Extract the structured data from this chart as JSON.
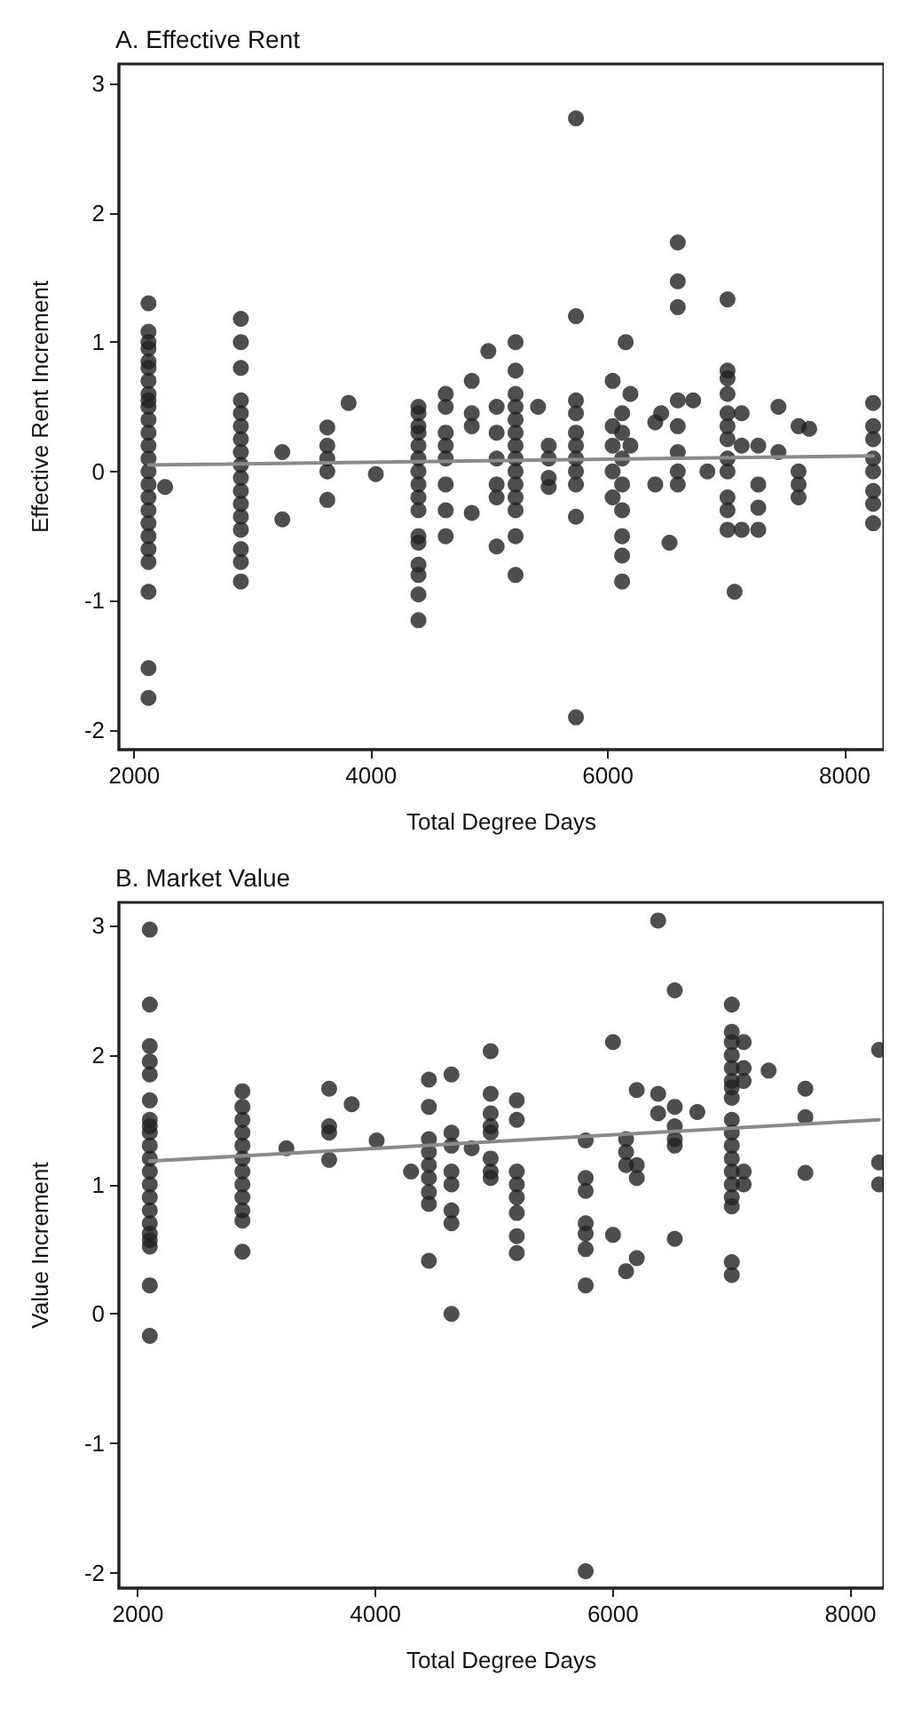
{
  "chart_data": [
    {
      "type": "scatter",
      "title": "A. Effective Rent",
      "xlabel": "Total Degree Days",
      "ylabel": "Effective Rent Increment",
      "xlim": [
        1870,
        8330
      ],
      "ylim": [
        -2.15,
        3.15
      ],
      "xticks": [
        2000,
        4000,
        6000,
        8000
      ],
      "yticks": [
        -2,
        -1,
        0,
        1,
        2,
        3
      ],
      "grid": false,
      "series": [
        {
          "color": "#222222",
          "marker": "circle",
          "x": [
            2120,
            2120,
            2120,
            2120,
            2120,
            2120,
            2120,
            2120,
            2120,
            2120,
            2120,
            2120,
            2120,
            2120,
            2120,
            2120,
            2120,
            2120,
            2120,
            2120,
            2120,
            2120,
            2120,
            2120,
            2120,
            2260,
            2900,
            2900,
            2900,
            2900,
            2900,
            2900,
            2900,
            2900,
            2900,
            2900,
            2900,
            2900,
            2900,
            2900,
            2900,
            2900,
            2900,
            3250,
            3250,
            3630,
            3630,
            3630,
            3630,
            3630,
            3810,
            4040,
            4400,
            4400,
            4400,
            4400,
            4400,
            4400,
            4400,
            4400,
            4400,
            4400,
            4400,
            4400,
            4400,
            4400,
            4400,
            4400,
            4630,
            4630,
            4630,
            4630,
            4630,
            4630,
            4630,
            4630,
            4850,
            4850,
            4850,
            4850,
            4990,
            5060,
            5060,
            5060,
            5060,
            5060,
            5060,
            5220,
            5220,
            5220,
            5220,
            5220,
            5220,
            5220,
            5220,
            5220,
            5220,
            5220,
            5220,
            5220,
            5220,
            5410,
            5500,
            5500,
            5500,
            5500,
            5730,
            5730,
            5730,
            5730,
            5730,
            5730,
            5730,
            5730,
            5730,
            5730,
            5730,
            6040,
            6040,
            6040,
            6040,
            6040,
            6120,
            6120,
            6120,
            6120,
            6120,
            6120,
            6120,
            6120,
            6150,
            6190,
            6190,
            6400,
            6400,
            6450,
            6590,
            6590,
            6590,
            6590,
            6590,
            6590,
            6590,
            6590,
            6520,
            6720,
            6840,
            7010,
            7010,
            7010,
            7010,
            7010,
            7010,
            7010,
            7010,
            7010,
            7010,
            7010,
            7010,
            7070,
            7130,
            7130,
            7130,
            7270,
            7270,
            7270,
            7270,
            7440,
            7440,
            7610,
            7610,
            7610,
            7610,
            7700,
            8240,
            8240,
            8240,
            8240,
            8240,
            8240,
            8240,
            8240
          ],
          "values": [
            1.3,
            1.08,
            1.0,
            0.95,
            0.85,
            0.8,
            0.7,
            0.6,
            0.55,
            0.5,
            0.4,
            0.3,
            0.2,
            0.1,
            0,
            -0.1,
            -0.2,
            -0.3,
            -0.4,
            -0.5,
            -0.6,
            -0.7,
            -0.93,
            -1.52,
            -1.75,
            -0.12,
            1.18,
            1.0,
            0.8,
            0.55,
            0.45,
            0.35,
            0.25,
            0.15,
            0.05,
            -0.05,
            -0.15,
            -0.25,
            -0.35,
            -0.45,
            -0.6,
            -0.7,
            -0.85,
            0.15,
            -0.37,
            0.34,
            0.2,
            0.1,
            0,
            -0.22,
            0.53,
            -0.02,
            0.5,
            0.45,
            0.35,
            0.3,
            0.2,
            0.1,
            0,
            -0.1,
            -0.2,
            -0.3,
            -0.5,
            -0.55,
            -0.72,
            -0.8,
            -0.95,
            -1.15,
            0.6,
            0.5,
            0.3,
            0.2,
            0.1,
            -0.1,
            -0.3,
            -0.5,
            0.7,
            0.45,
            0.35,
            -0.32,
            0.93,
            0.5,
            0.3,
            0.1,
            -0.1,
            -0.2,
            -0.58,
            1.0,
            0.78,
            0.6,
            0.5,
            0.4,
            0.3,
            0.2,
            0.1,
            0,
            -0.1,
            -0.2,
            -0.3,
            -0.5,
            -0.8,
            0.5,
            0.2,
            0.1,
            -0.05,
            -0.12,
            2.73,
            1.2,
            0.55,
            0.45,
            0.3,
            0.2,
            0.1,
            0,
            -0.1,
            -0.35,
            -1.9,
            0.7,
            0.35,
            0.2,
            0,
            -0.2,
            0.45,
            0.3,
            0.1,
            -0.1,
            -0.3,
            -0.5,
            -0.65,
            -0.85,
            1.0,
            0.6,
            0.2,
            0.38,
            -0.1,
            0.45,
            1.77,
            1.47,
            1.27,
            0.55,
            0.35,
            0.15,
            0,
            -0.1,
            -0.55,
            0.55,
            0,
            1.33,
            0.78,
            0.72,
            0.6,
            0.45,
            0.35,
            0.25,
            0.1,
            0,
            -0.2,
            -0.3,
            -0.45,
            -0.93,
            0.45,
            0.2,
            -0.45,
            0.2,
            -0.1,
            -0.28,
            -0.45,
            0.5,
            0.15,
            0.35,
            0,
            -0.1,
            -0.2,
            0.33,
            0.53,
            0.35,
            0.25,
            0.1,
            0,
            -0.15,
            -0.25,
            -0.4
          ]
        },
        {
          "type": "line",
          "color": "#8a8a8a",
          "marker": "none",
          "x": [
            2120,
            8240
          ],
          "values": [
            0.05,
            0.12
          ]
        }
      ]
    },
    {
      "type": "scatter",
      "title": "B. Market Value",
      "xlabel": "Total Degree Days",
      "ylabel": "Value Increment",
      "xlim": [
        1840,
        8280
      ],
      "ylim": [
        -2.12,
        3.18
      ],
      "xticks": [
        2000,
        4000,
        6000,
        8000
      ],
      "yticks": [
        -2,
        -1,
        0,
        1,
        2,
        3
      ],
      "grid": false,
      "series": [
        {
          "color": "#222222",
          "marker": "circle",
          "x": [
            2100,
            2100,
            2100,
            2100,
            2100,
            2100,
            2100,
            2100,
            2100,
            2100,
            2100,
            2100,
            2100,
            2100,
            2100,
            2100,
            2100,
            2100,
            2100,
            2100,
            2100,
            2880,
            2880,
            2880,
            2880,
            2880,
            2880,
            2880,
            2880,
            2880,
            2880,
            2880,
            2880,
            3250,
            3610,
            3610,
            3610,
            3610,
            3800,
            4010,
            4300,
            4450,
            4450,
            4450,
            4450,
            4450,
            4450,
            4450,
            4450,
            4450,
            4640,
            4640,
            4640,
            4640,
            4640,
            4640,
            4640,
            4640,
            4810,
            4970,
            4970,
            4970,
            4970,
            4970,
            4970,
            4970,
            4970,
            5190,
            5190,
            5190,
            5190,
            5190,
            5190,
            5190,
            5190,
            5770,
            5770,
            5770,
            5770,
            5770,
            5770,
            5770,
            5770,
            6000,
            6000,
            6110,
            6110,
            6110,
            6110,
            6200,
            6200,
            6200,
            6200,
            6380,
            6380,
            6380,
            6520,
            6520,
            6520,
            6520,
            6520,
            6520,
            6710,
            7000,
            7000,
            7000,
            7000,
            7000,
            7000,
            7000,
            7000,
            7000,
            7000,
            7000,
            7000,
            7000,
            7000,
            7000,
            7000,
            7000,
            7000,
            7100,
            7100,
            7100,
            7100,
            7100,
            7310,
            7620,
            7620,
            7620,
            8240,
            8240,
            8240
          ],
          "values": [
            2.97,
            2.39,
            2.07,
            1.95,
            1.85,
            1.65,
            1.5,
            1.45,
            1.4,
            1.3,
            1.2,
            1.1,
            1.0,
            0.9,
            0.8,
            0.7,
            0.62,
            0.57,
            0.52,
            0.22,
            -0.17,
            1.72,
            1.6,
            1.5,
            1.4,
            1.3,
            1.2,
            1.1,
            1.0,
            0.9,
            0.8,
            0.72,
            0.48,
            1.28,
            1.74,
            1.45,
            1.4,
            1.19,
            1.62,
            1.34,
            1.1,
            1.81,
            1.6,
            1.35,
            1.25,
            1.15,
            1.05,
            0.94,
            0.85,
            0.41,
            1.85,
            1.4,
            1.3,
            1.1,
            1.0,
            0.8,
            0.7,
            0.0,
            1.28,
            2.03,
            1.7,
            1.55,
            1.45,
            1.4,
            1.2,
            1.1,
            1.05,
            1.65,
            1.5,
            1.1,
            1.0,
            0.9,
            0.78,
            0.6,
            0.47,
            1.34,
            1.05,
            0.95,
            0.7,
            0.62,
            0.5,
            0.22,
            -1.99,
            2.1,
            0.61,
            1.35,
            1.25,
            1.15,
            0.33,
            1.73,
            1.15,
            1.05,
            0.43,
            3.04,
            1.7,
            1.55,
            2.5,
            1.6,
            1.45,
            1.35,
            1.3,
            0.58,
            1.56,
            2.39,
            2.18,
            2.1,
            2.0,
            1.9,
            1.8,
            1.75,
            1.67,
            1.5,
            1.4,
            1.3,
            1.2,
            1.1,
            1.0,
            0.9,
            0.83,
            0.4,
            0.3,
            2.1,
            1.9,
            1.8,
            1.1,
            1.0,
            1.88,
            1.74,
            1.52,
            1.09,
            2.04,
            1.17,
            1.0
          ]
        },
        {
          "type": "line",
          "color": "#8a8a8a",
          "marker": "none",
          "x": [
            2100,
            8240
          ],
          "values": [
            1.18,
            1.5
          ]
        }
      ]
    }
  ]
}
